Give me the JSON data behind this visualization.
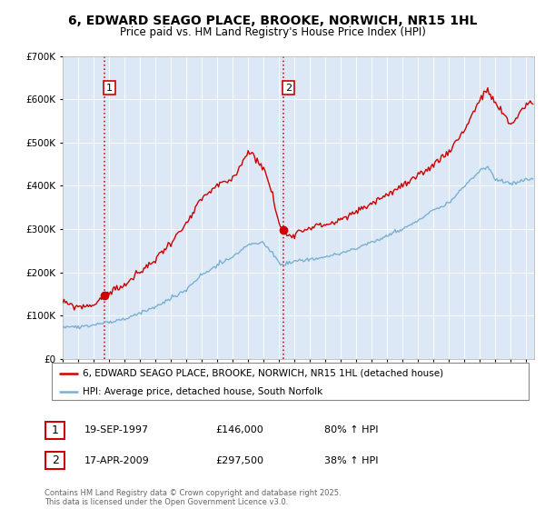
{
  "title1": "6, EDWARD SEAGO PLACE, BROOKE, NORWICH, NR15 1HL",
  "title2": "Price paid vs. HM Land Registry's House Price Index (HPI)",
  "bg_color": "#ffffff",
  "plot_bg": "#dce8f5",
  "red_color": "#cc0000",
  "blue_color": "#7ab0d4",
  "sale1_date": 1997.72,
  "sale1_price": 146000,
  "sale1_label": "1",
  "sale2_date": 2009.29,
  "sale2_price": 297500,
  "sale2_label": "2",
  "legend1": "6, EDWARD SEAGO PLACE, BROOKE, NORWICH, NR15 1HL (detached house)",
  "legend2": "HPI: Average price, detached house, South Norfolk",
  "table1_num": "1",
  "table1_date": "19-SEP-1997",
  "table1_price": "£146,000",
  "table1_hpi": "80% ↑ HPI",
  "table2_num": "2",
  "table2_date": "17-APR-2009",
  "table2_price": "£297,500",
  "table2_hpi": "38% ↑ HPI",
  "footnote1": "Contains HM Land Registry data © Crown copyright and database right 2025.",
  "footnote2": "This data is licensed under the Open Government Licence v3.0.",
  "ymax": 700000,
  "xmin": 1995.0,
  "xmax": 2025.5,
  "red_kx": [
    1995,
    1996,
    1997,
    1997.72,
    1998,
    1999,
    2000,
    2001,
    2002,
    2003,
    2004,
    2005,
    2006,
    2007,
    2007.5,
    2008,
    2008.5,
    2009,
    2009.29,
    2009.5,
    2010,
    2011,
    2012,
    2013,
    2014,
    2015,
    2016,
    2017,
    2018,
    2019,
    2020,
    2021,
    2022,
    2022.5,
    2023,
    2023.5,
    2024,
    2025
  ],
  "red_ky": [
    130000,
    120000,
    125000,
    146000,
    155000,
    170000,
    200000,
    230000,
    270000,
    310000,
    370000,
    400000,
    415000,
    480000,
    465000,
    440000,
    390000,
    310000,
    297500,
    285000,
    290000,
    305000,
    310000,
    320000,
    340000,
    360000,
    380000,
    400000,
    420000,
    450000,
    480000,
    530000,
    600000,
    620000,
    590000,
    565000,
    540000,
    590000
  ],
  "blue_kx": [
    1995,
    1996,
    1997,
    1998,
    1999,
    2000,
    2001,
    2002,
    2003,
    2004,
    2005,
    2006,
    2007,
    2008,
    2009,
    2009.29,
    2010,
    2011,
    2012,
    2013,
    2014,
    2015,
    2016,
    2017,
    2018,
    2019,
    2020,
    2021,
    2022,
    2022.5,
    2023,
    2024,
    2025
  ],
  "blue_ky": [
    75000,
    73000,
    78000,
    85000,
    92000,
    105000,
    120000,
    140000,
    160000,
    195000,
    215000,
    235000,
    265000,
    268000,
    225000,
    218000,
    225000,
    230000,
    235000,
    245000,
    255000,
    270000,
    285000,
    300000,
    320000,
    345000,
    360000,
    400000,
    435000,
    445000,
    415000,
    405000,
    415000
  ]
}
